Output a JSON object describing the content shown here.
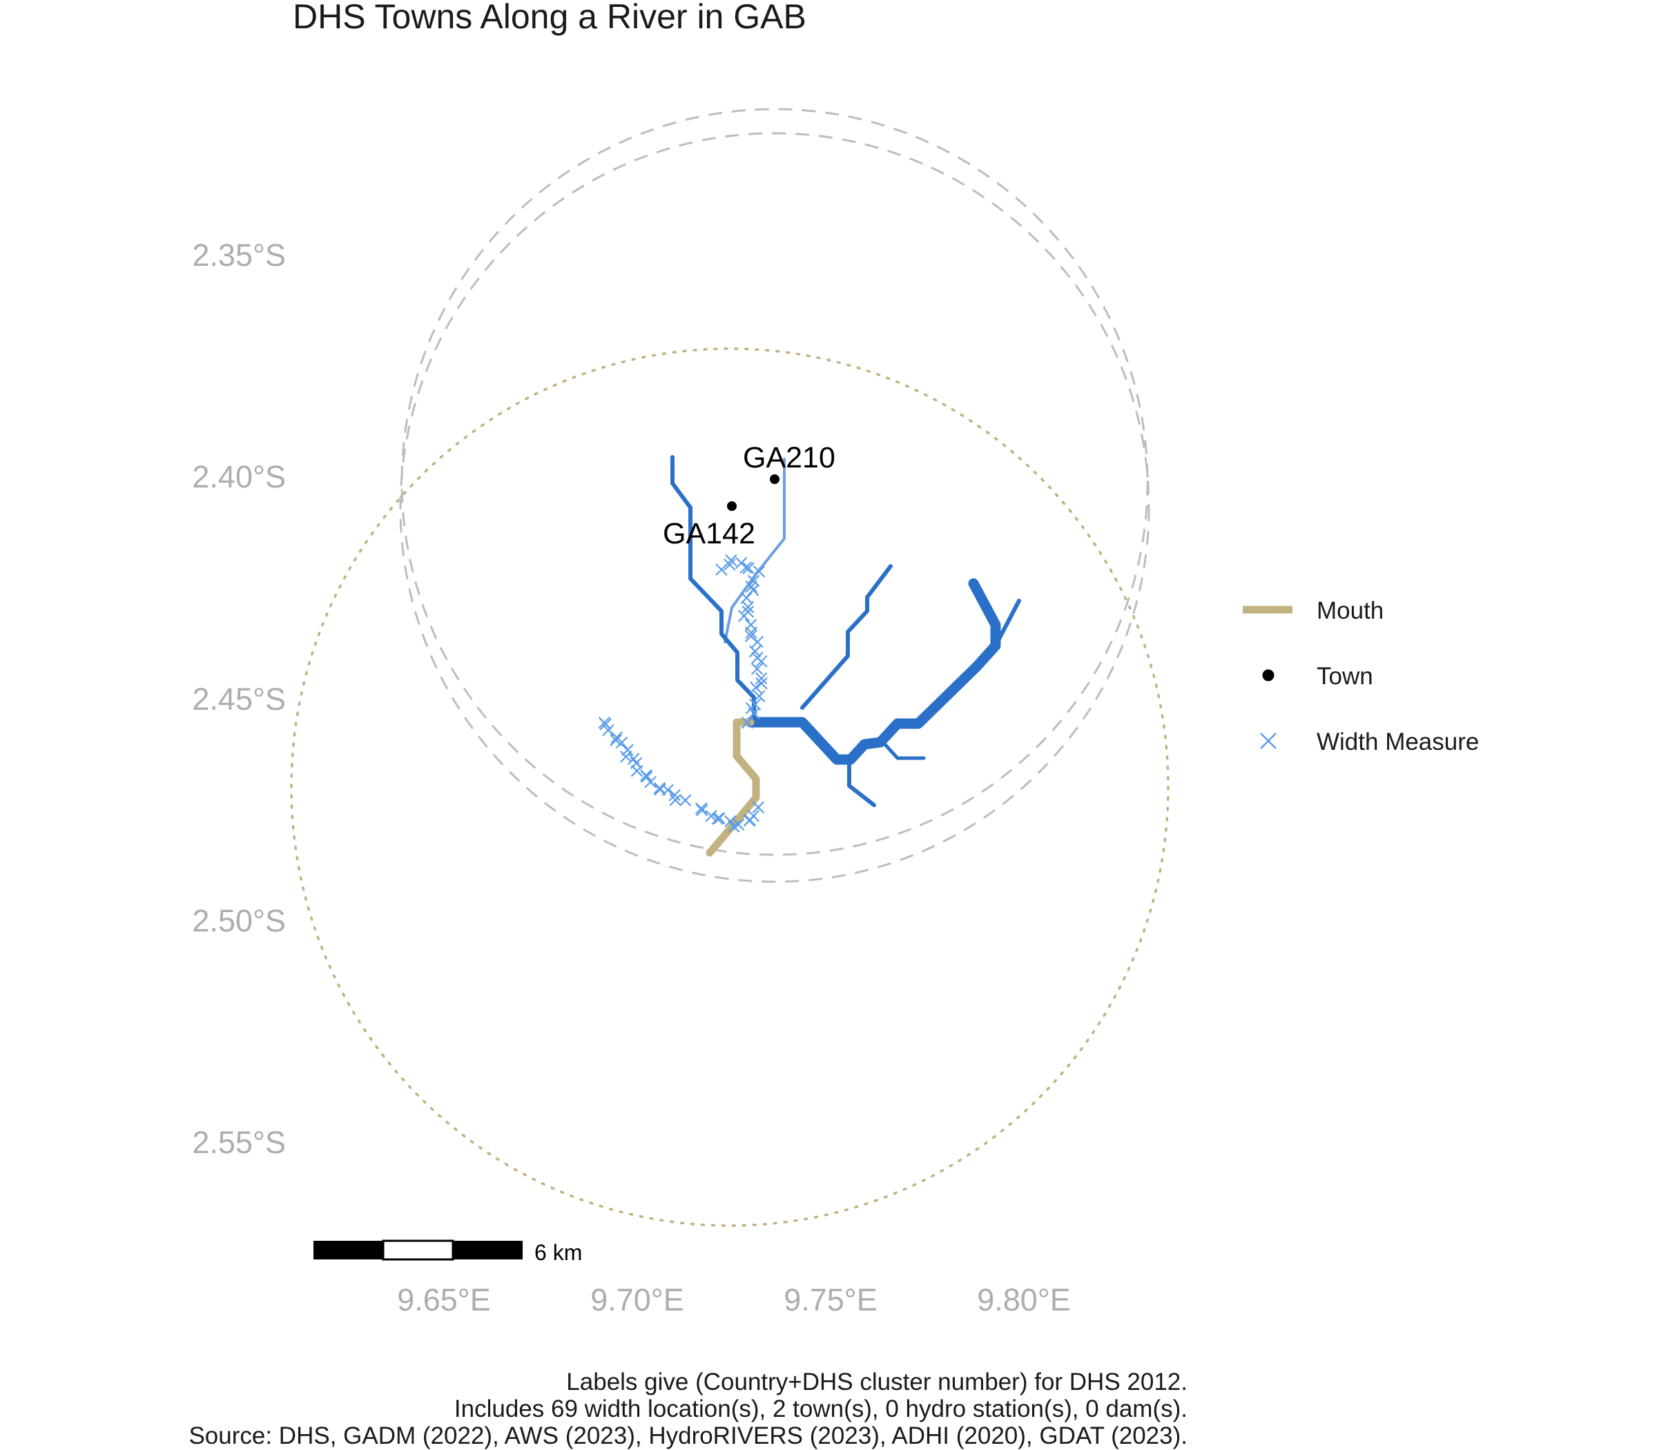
{
  "title": "DHS Towns Along a River in GAB",
  "axes": {
    "y_ticks": [
      {
        "value": -2.35,
        "label": "2.35°S"
      },
      {
        "value": -2.4,
        "label": "2.40°S"
      },
      {
        "value": -2.45,
        "label": "2.45°S"
      },
      {
        "value": -2.5,
        "label": "2.50°S"
      },
      {
        "value": -2.55,
        "label": "2.55°S"
      }
    ],
    "x_ticks": [
      {
        "value": 9.65,
        "label": "9.65°E"
      },
      {
        "value": 9.7,
        "label": "9.70°E"
      },
      {
        "value": 9.75,
        "label": "9.75°E"
      },
      {
        "value": 9.8,
        "label": "9.80°E"
      }
    ],
    "grid": false
  },
  "legend": {
    "placement": "right",
    "items": [
      {
        "key": "mouth",
        "label": "Mouth",
        "color": "#c2b280",
        "symbol": "line"
      },
      {
        "key": "town",
        "label": "Town",
        "color": "#000000",
        "symbol": "dot"
      },
      {
        "key": "width",
        "label": "Width Measure",
        "color": "#5b9de8",
        "symbol": "cross"
      }
    ]
  },
  "towns": [
    {
      "id": "GA210",
      "lon": 9.734,
      "lat": -2.4005
    },
    {
      "id": "GA142",
      "lon": 9.723,
      "lat": -2.4065
    }
  ],
  "scale_bar": {
    "label": "6 km"
  },
  "colors": {
    "river": "#2a70c8",
    "tributary": "#6aa0e0",
    "mouth": "#c2b280",
    "width_marker": "#5b9de8",
    "buffer_circle": "#bdbdbd",
    "mouth_circle": "#c2b280",
    "town": "#000000"
  },
  "caption": {
    "line1": "Labels give (Country+DHS cluster number) for DHS 2012.",
    "line2": "Includes 69 width location(s), 2 town(s), 0 hydro station(s), 0 dam(s).",
    "line3": "Source: DHS, GADM (2022), AWS (2023), HydroRIVERS (2023), ADHI (2020), GDAT (2023)."
  }
}
